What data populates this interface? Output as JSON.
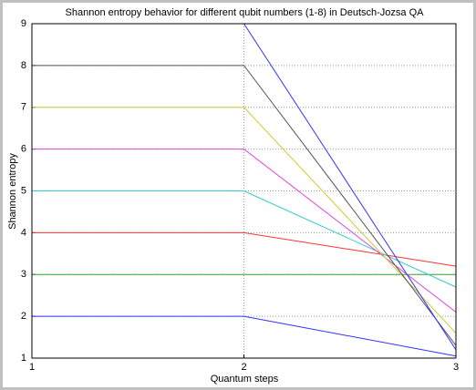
{
  "chart_data": {
    "type": "line",
    "title": "Shannon entropy behavior for different qubit numbers (1-8) in Deutsch-Jozsa QA",
    "x_label": "Quantum steps",
    "y_label": "Shannon entropy",
    "x": [
      1,
      2,
      3
    ],
    "series": [
      {
        "color": "#3333ff",
        "values": [
          2,
          2,
          1.05
        ]
      },
      {
        "color": "#33aa33",
        "values": [
          3,
          3,
          3
        ]
      },
      {
        "color": "#ff3333",
        "values": [
          4,
          4,
          3.2
        ]
      },
      {
        "color": "#33cccc",
        "values": [
          5,
          5,
          2.7
        ]
      },
      {
        "color": "#dd44dd",
        "values": [
          6,
          6,
          2.1
        ]
      },
      {
        "color": "#cccc33",
        "values": [
          7,
          7,
          1.6
        ]
      },
      {
        "color": "#555555",
        "values": [
          8,
          8,
          1.3
        ]
      },
      {
        "color": "#3333ff",
        "values": [
          9,
          9,
          1.2
        ]
      }
    ],
    "xlim": [
      1,
      3
    ],
    "xticks": [
      1,
      2,
      3
    ],
    "ylim": [
      1,
      9
    ],
    "yticks": [
      1,
      2,
      3,
      4,
      5,
      6,
      7,
      8,
      9
    ],
    "grid": true
  }
}
